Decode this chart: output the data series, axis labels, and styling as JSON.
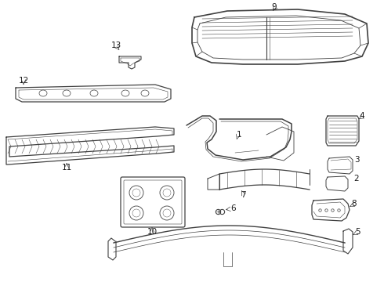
{
  "bg_color": "#ffffff",
  "line_color": "#404040",
  "label_color": "#1a1a1a",
  "figsize": [
    4.9,
    3.6
  ],
  "dpi": 100,
  "font_size": 7.5
}
